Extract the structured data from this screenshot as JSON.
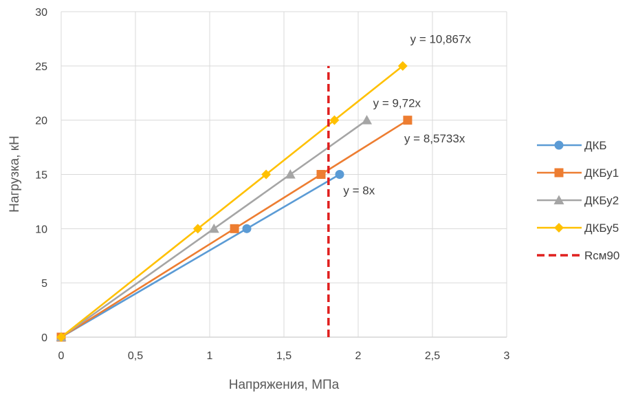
{
  "chart_data": {
    "type": "line",
    "xlabel": "Напряжения, МПа",
    "ylabel": "Нагрузка, кН",
    "xlim": [
      0,
      3
    ],
    "ylim": [
      0,
      30
    ],
    "x_ticks": [
      "0",
      "0,5",
      "1",
      "1,5",
      "2",
      "2,5",
      "3"
    ],
    "y_ticks": [
      "0",
      "5",
      "10",
      "15",
      "20",
      "25",
      "30"
    ],
    "grid": true,
    "legend_position": "right",
    "series": [
      {
        "name": "ДКБ",
        "color": "#5b9bd5",
        "marker": "circle",
        "x": [
          0,
          1.25,
          1.875
        ],
        "y": [
          0,
          10,
          15
        ]
      },
      {
        "name": "ДКБу1",
        "color": "#ed7d31",
        "marker": "square",
        "x": [
          0,
          1.167,
          1.75,
          2.333
        ],
        "y": [
          0,
          10,
          15,
          20
        ]
      },
      {
        "name": "ДКБу2",
        "color": "#a5a5a5",
        "marker": "triangle",
        "x": [
          0,
          1.029,
          1.543,
          2.058
        ],
        "y": [
          0,
          10,
          15,
          20
        ]
      },
      {
        "name": "ДКБу5",
        "color": "#ffc000",
        "marker": "diamond",
        "x": [
          0,
          0.92,
          1.38,
          1.84,
          2.3
        ],
        "y": [
          0,
          10,
          15,
          20,
          25
        ]
      },
      {
        "name": "Rсм90",
        "color": "#e0201f",
        "marker": "none",
        "dashed": true,
        "x": [
          1.8,
          1.8
        ],
        "y": [
          0,
          25
        ]
      }
    ],
    "trendline_labels": [
      {
        "text": "y = 8x",
        "x": 1.9,
        "y": 13.15
      },
      {
        "text": "y = 8,5733x",
        "x": 2.31,
        "y": 17.95
      },
      {
        "text": "y = 9,72x",
        "x": 2.1,
        "y": 21.2
      },
      {
        "text": "y = 10,867x",
        "x": 2.35,
        "y": 27.1
      }
    ]
  }
}
